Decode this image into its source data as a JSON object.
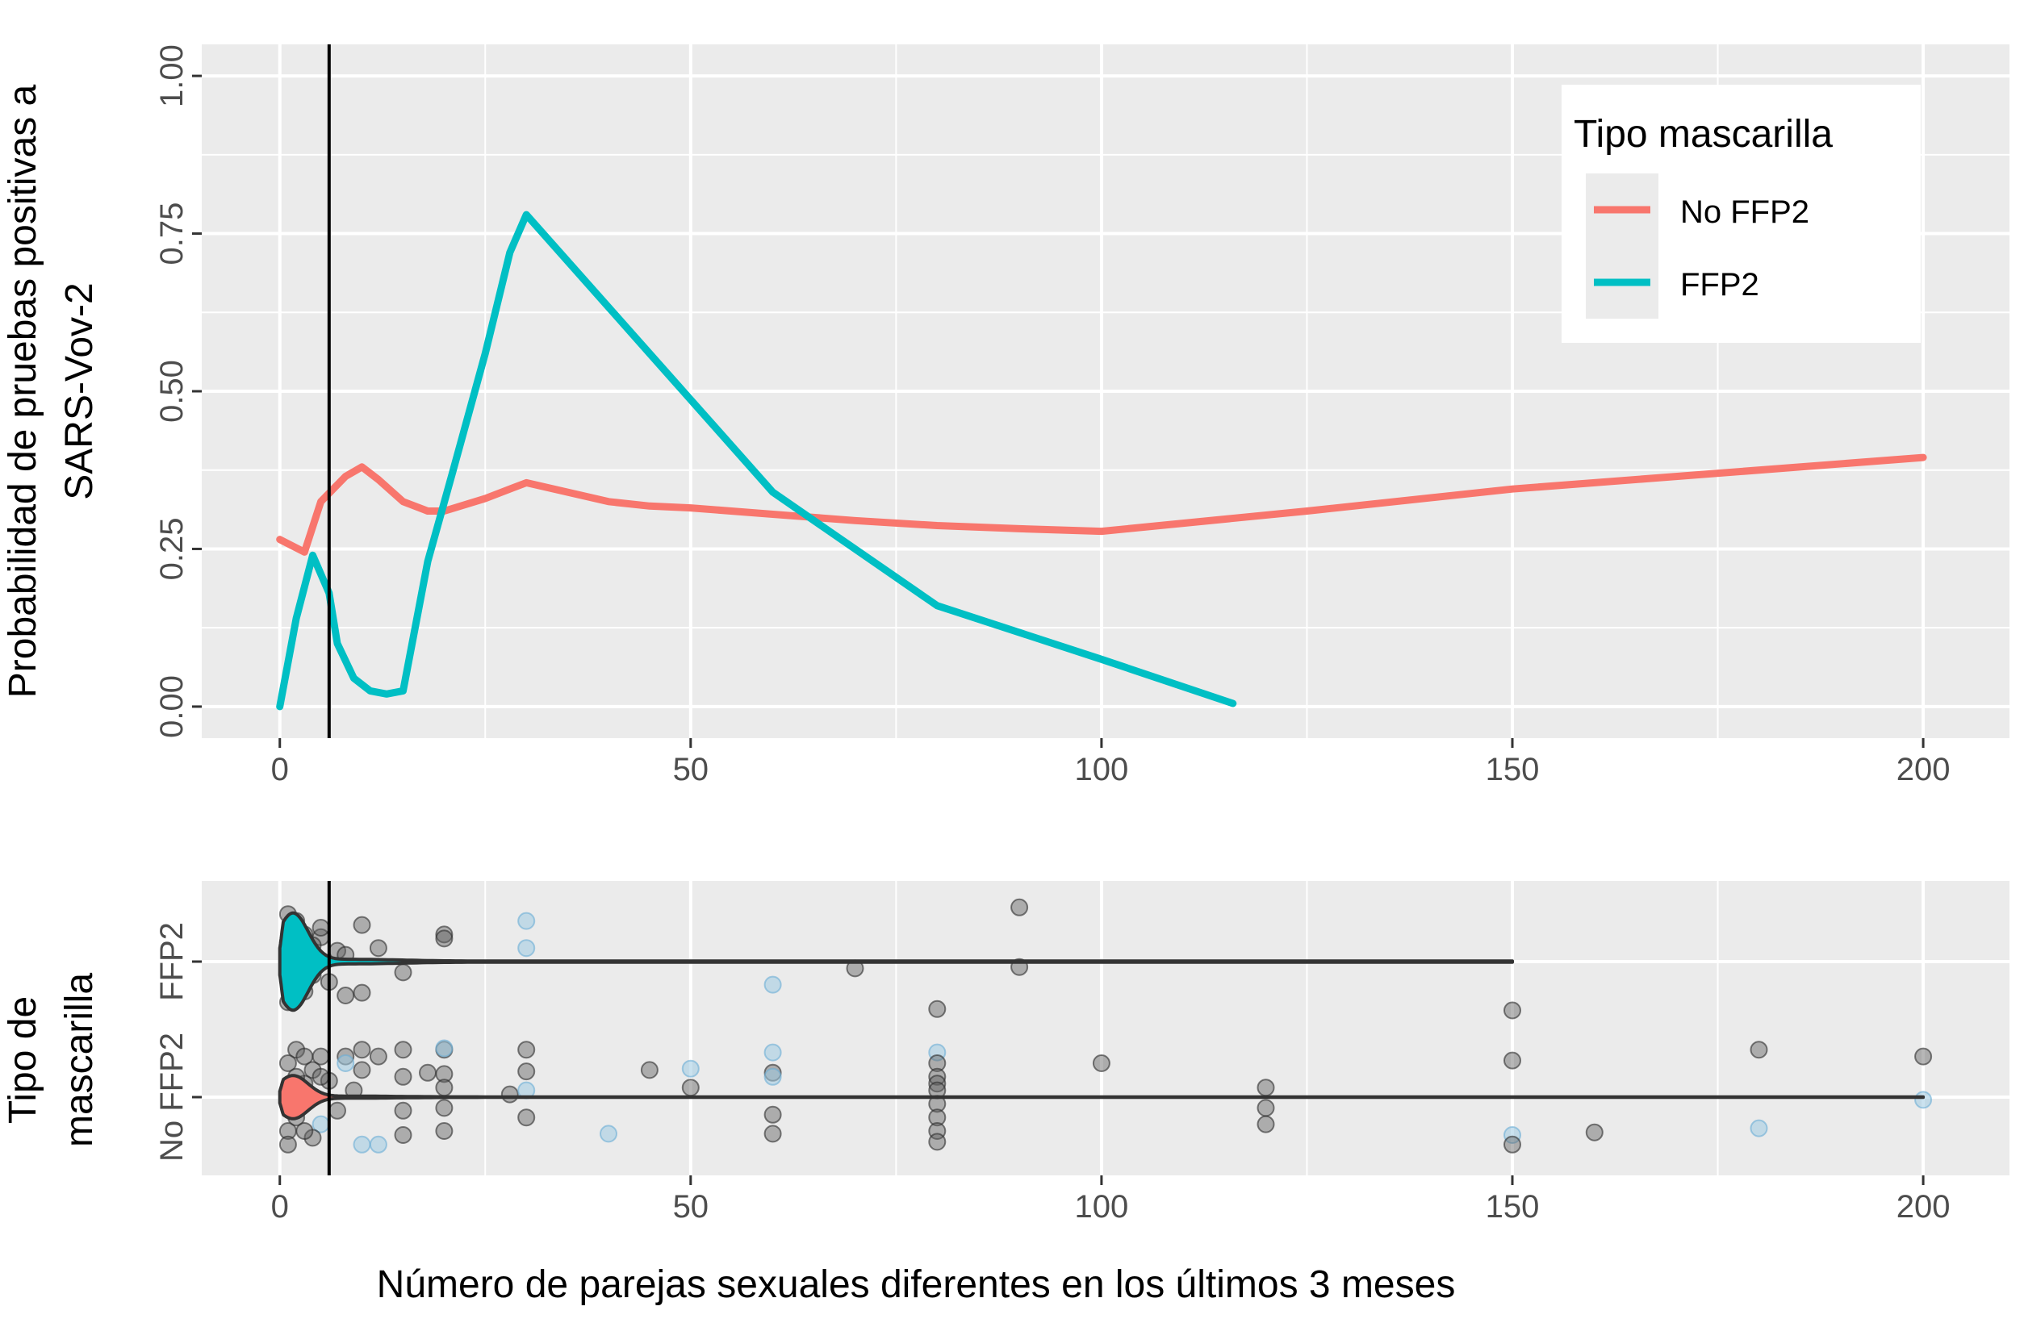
{
  "chart_data": [
    {
      "type": "line",
      "title": "",
      "xlabel": "",
      "ylabel_lines": [
        "Probabilidad de pruebas positivas a",
        "SARS-Vov-2"
      ],
      "xlim": [
        -9.5,
        210.5
      ],
      "ylim": [
        -0.05,
        1.05
      ],
      "x_ticks": [
        0,
        50,
        100,
        150,
        200
      ],
      "y_ticks": [
        0.0,
        0.25,
        0.5,
        0.75,
        1.0
      ],
      "x_tick_labels": [
        "0",
        "50",
        "100",
        "150",
        "200"
      ],
      "y_tick_labels": [
        "0.00",
        "0.25",
        "0.50",
        "0.75",
        "1.00"
      ],
      "grid": true,
      "vline_x": 6,
      "legend": {
        "title": "Tipo mascarilla",
        "position": "top-right",
        "entries": [
          "No FFP2",
          "FFP2"
        ]
      },
      "series": [
        {
          "name": "No FFP2",
          "color": "#F8766D",
          "x": [
            0,
            3,
            5,
            8,
            10,
            12,
            15,
            18,
            20,
            25,
            30,
            40,
            45,
            50,
            60,
            70,
            80,
            90,
            100,
            125,
            150,
            200
          ],
          "y": [
            0.265,
            0.245,
            0.325,
            0.365,
            0.38,
            0.36,
            0.325,
            0.31,
            0.31,
            0.33,
            0.355,
            0.325,
            0.318,
            0.315,
            0.305,
            0.295,
            0.287,
            0.282,
            0.278,
            0.31,
            0.345,
            0.395
          ]
        },
        {
          "name": "FFP2",
          "color": "#00BFC4",
          "x": [
            0,
            2,
            4,
            6,
            7,
            9,
            11,
            13,
            15,
            18,
            21,
            25,
            28,
            30,
            45,
            60,
            80,
            100,
            116
          ],
          "y": [
            0.0,
            0.14,
            0.24,
            0.18,
            0.1,
            0.045,
            0.025,
            0.02,
            0.025,
            0.23,
            0.37,
            0.56,
            0.72,
            0.78,
            0.56,
            0.34,
            0.16,
            0.075,
            0.005
          ]
        }
      ]
    },
    {
      "type": "scatter",
      "title": "",
      "xlabel": "Número de parejas sexuales diferentes en los últimos 3 meses",
      "ylabel_lines": [
        "Tipo de",
        "mascarilla"
      ],
      "xlim": [
        -9.5,
        210.5
      ],
      "x_ticks": [
        0,
        50,
        100,
        150,
        200
      ],
      "x_tick_labels": [
        "0",
        "50",
        "100",
        "150",
        "200"
      ],
      "categories": [
        "No FFP2",
        "FFP2"
      ],
      "grid": true,
      "vline_x": 6,
      "violins": [
        {
          "category": "FFP2",
          "fill": "#00BFC4",
          "range": [
            0,
            150
          ],
          "max_halfwidth": 0.36
        },
        {
          "category": "No FFP2",
          "fill": "#F8766D",
          "range": [
            0,
            200
          ],
          "max_halfwidth": 0.16
        }
      ],
      "points": {
        "FFP2": [
          [
            2,
            0.3
          ],
          [
            3,
            -0.22
          ],
          [
            5,
            0.18
          ],
          [
            8,
            -0.25
          ],
          [
            10,
            0.27
          ],
          [
            10,
            -0.23
          ],
          [
            12,
            0.1
          ],
          [
            15,
            -0.08
          ],
          [
            20,
            0.2
          ],
          [
            20,
            0.17
          ],
          [
            30,
            0.3,
            "b"
          ],
          [
            30,
            0.1,
            "b"
          ],
          [
            60,
            -0.17,
            "b"
          ],
          [
            70,
            -0.05
          ],
          [
            80,
            -0.35
          ],
          [
            90,
            0.4
          ],
          [
            90,
            -0.04
          ],
          [
            150,
            -0.36
          ],
          [
            4,
            0.12
          ],
          [
            6,
            -0.15
          ],
          [
            1,
            0.35
          ],
          [
            1,
            -0.3
          ],
          [
            2,
            0.22
          ],
          [
            3,
            0.2
          ],
          [
            1,
            0.05
          ],
          [
            2,
            -0.05
          ],
          [
            7,
            0.08
          ],
          [
            8,
            0.05
          ],
          [
            4,
            -0.1
          ],
          [
            5,
            0.25
          ]
        ],
        "No FFP2": [
          [
            2,
            0.35
          ],
          [
            5,
            0.3
          ],
          [
            8,
            0.3
          ],
          [
            10,
            0.35
          ],
          [
            10,
            0.2
          ],
          [
            12,
            0.3
          ],
          [
            15,
            0.35
          ],
          [
            15,
            0.15
          ],
          [
            15,
            -0.1
          ],
          [
            15,
            -0.28
          ],
          [
            18,
            0.18
          ],
          [
            20,
            0.35
          ],
          [
            20,
            0.36,
            "b"
          ],
          [
            20,
            0.17
          ],
          [
            20,
            0.07
          ],
          [
            20,
            -0.08
          ],
          [
            20,
            -0.25
          ],
          [
            28,
            0.02
          ],
          [
            30,
            0.35
          ],
          [
            30,
            0.19
          ],
          [
            30,
            0.05,
            "b"
          ],
          [
            30,
            -0.15
          ],
          [
            40,
            -0.27,
            "b"
          ],
          [
            45,
            0.2
          ],
          [
            50,
            0.21,
            "b"
          ],
          [
            50,
            0.07
          ],
          [
            60,
            0.33,
            "b"
          ],
          [
            60,
            0.18
          ],
          [
            60,
            0.15,
            "b"
          ],
          [
            60,
            -0.13
          ],
          [
            60,
            -0.27
          ],
          [
            80,
            0.33,
            "b"
          ],
          [
            80,
            0.25
          ],
          [
            80,
            0.15
          ],
          [
            80,
            0.1
          ],
          [
            80,
            0.05
          ],
          [
            80,
            -0.05
          ],
          [
            80,
            -0.15
          ],
          [
            80,
            -0.25
          ],
          [
            80,
            -0.33
          ],
          [
            100,
            0.25
          ],
          [
            120,
            0.07
          ],
          [
            120,
            -0.08
          ],
          [
            120,
            -0.2
          ],
          [
            150,
            0.27
          ],
          [
            150,
            -0.28,
            "b"
          ],
          [
            150,
            -0.35
          ],
          [
            160,
            -0.26
          ],
          [
            180,
            0.35
          ],
          [
            180,
            -0.23,
            "b"
          ],
          [
            200,
            0.3
          ],
          [
            200,
            -0.02,
            "b"
          ],
          [
            10,
            -0.35,
            "b"
          ],
          [
            12,
            -0.35,
            "b"
          ],
          [
            8,
            0.25,
            "b"
          ],
          [
            5,
            -0.2,
            "b"
          ],
          [
            3,
            0.1
          ],
          [
            4,
            -0.3
          ],
          [
            1,
            0.25
          ],
          [
            1,
            -0.25
          ],
          [
            2,
            0.15
          ],
          [
            2,
            -0.15
          ],
          [
            6,
            0.12
          ],
          [
            7,
            -0.1
          ],
          [
            9,
            0.05
          ],
          [
            3,
            0.3
          ],
          [
            4,
            0.2
          ],
          [
            1,
            -0.35
          ],
          [
            3,
            -0.25
          ],
          [
            5,
            0.15
          ]
        ]
      }
    }
  ]
}
